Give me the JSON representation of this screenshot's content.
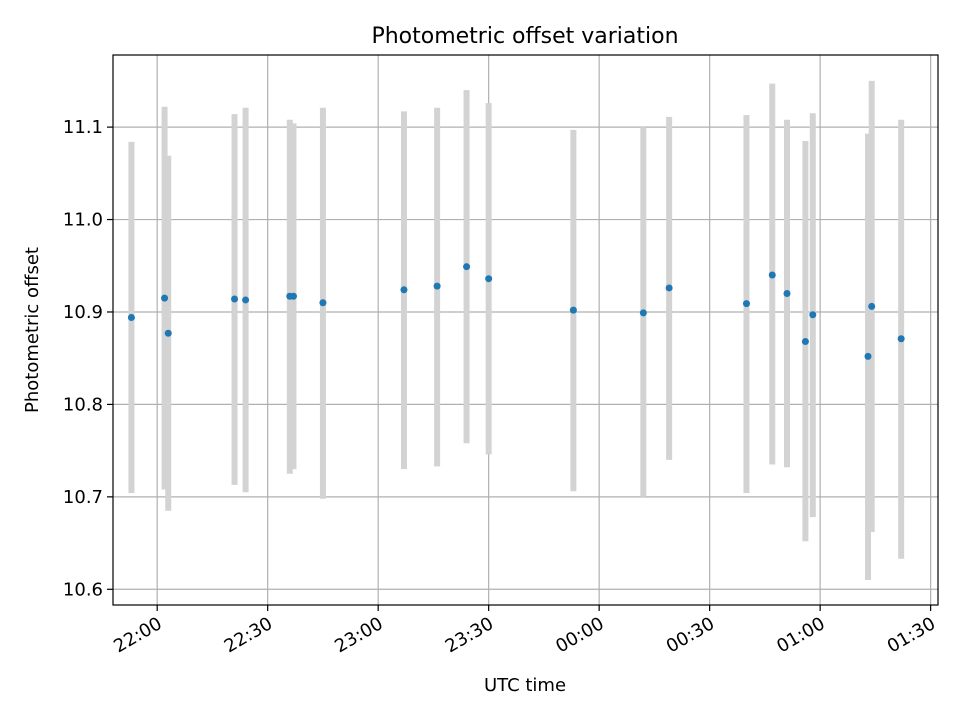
{
  "chart_data": {
    "type": "scatter",
    "title": "Photometric offset variation",
    "xlabel": "UTC time",
    "ylabel": "Photometric offset",
    "x_tick_labels": [
      "22:00",
      "22:30",
      "23:00",
      "23:30",
      "00:00",
      "00:30",
      "01:00",
      "01:30"
    ],
    "y_tick_labels": [
      "10.6",
      "10.7",
      "10.8",
      "10.9",
      "11.0",
      "11.1"
    ],
    "xlim": [
      "21:48",
      "01:32"
    ],
    "ylim": [
      10.583,
      11.178
    ],
    "grid": true,
    "point_color": "#1f77b4",
    "errorbar_color": "#d3d3d3",
    "points": [
      {
        "t": "21:53",
        "y": 10.894,
        "lo": 10.704,
        "hi": 11.084
      },
      {
        "t": "22:02",
        "y": 10.915,
        "lo": 10.708,
        "hi": 11.122
      },
      {
        "t": "22:03",
        "y": 10.877,
        "lo": 10.685,
        "hi": 11.069
      },
      {
        "t": "22:21",
        "y": 10.914,
        "lo": 10.713,
        "hi": 11.114
      },
      {
        "t": "22:24",
        "y": 10.913,
        "lo": 10.705,
        "hi": 11.121
      },
      {
        "t": "22:36",
        "y": 10.917,
        "lo": 10.725,
        "hi": 11.108
      },
      {
        "t": "22:37",
        "y": 10.917,
        "lo": 10.73,
        "hi": 11.104
      },
      {
        "t": "22:45",
        "y": 10.91,
        "lo": 10.698,
        "hi": 11.121
      },
      {
        "t": "23:07",
        "y": 10.924,
        "lo": 10.73,
        "hi": 11.117
      },
      {
        "t": "23:16",
        "y": 10.928,
        "lo": 10.733,
        "hi": 11.121
      },
      {
        "t": "23:24",
        "y": 10.949,
        "lo": 10.758,
        "hi": 11.14
      },
      {
        "t": "23:30",
        "y": 10.936,
        "lo": 10.746,
        "hi": 11.126
      },
      {
        "t": "23:53",
        "y": 10.902,
        "lo": 10.706,
        "hi": 11.097
      },
      {
        "t": "00:12",
        "y": 10.899,
        "lo": 10.7,
        "hi": 11.1
      },
      {
        "t": "00:19",
        "y": 10.926,
        "lo": 10.74,
        "hi": 11.111
      },
      {
        "t": "00:40",
        "y": 10.909,
        "lo": 10.704,
        "hi": 11.113
      },
      {
        "t": "00:47",
        "y": 10.94,
        "lo": 10.735,
        "hi": 11.147
      },
      {
        "t": "00:51",
        "y": 10.92,
        "lo": 10.732,
        "hi": 11.108
      },
      {
        "t": "00:56",
        "y": 10.868,
        "lo": 10.652,
        "hi": 11.085
      },
      {
        "t": "00:58",
        "y": 10.897,
        "lo": 10.678,
        "hi": 11.115
      },
      {
        "t": "01:13",
        "y": 10.852,
        "lo": 10.61,
        "hi": 11.093
      },
      {
        "t": "01:14",
        "y": 10.906,
        "lo": 10.662,
        "hi": 11.15
      },
      {
        "t": "01:22",
        "y": 10.871,
        "lo": 10.633,
        "hi": 11.108
      }
    ]
  }
}
